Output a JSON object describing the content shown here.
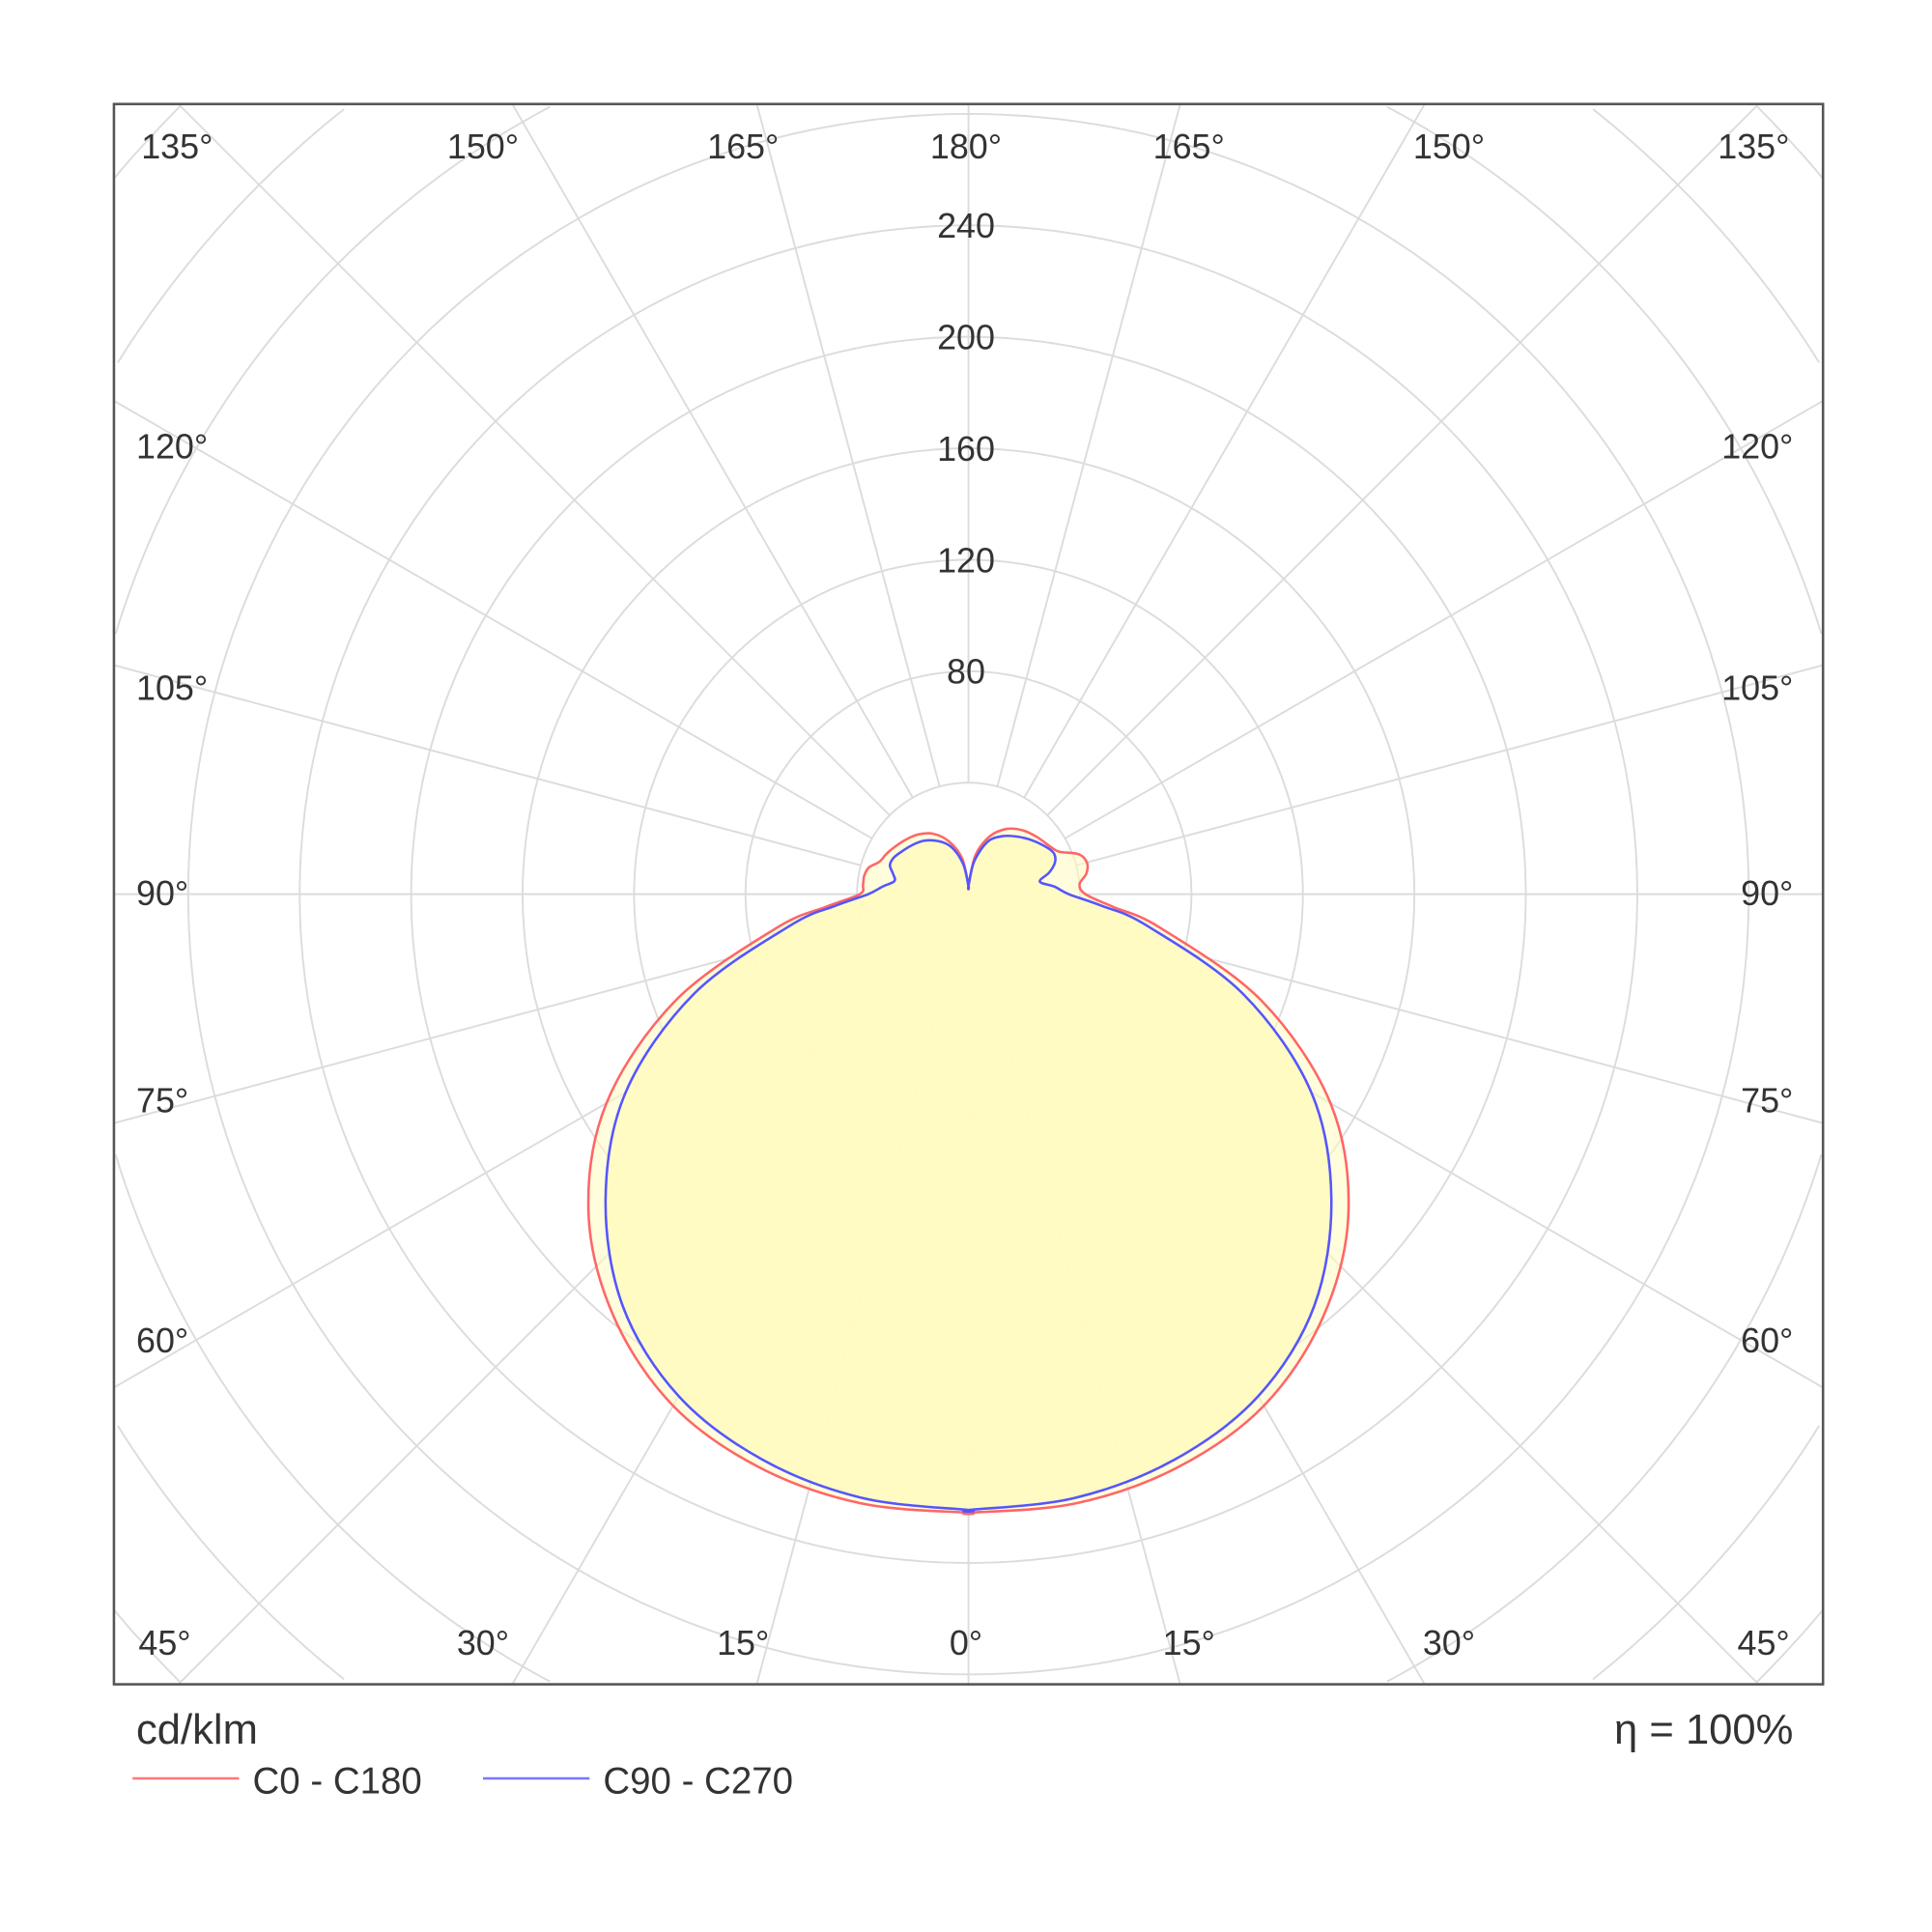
{
  "chart_data": {
    "type": "polar",
    "unit_label": "cd/klm",
    "efficiency_label": "η = 100%",
    "radial_ticks": [
      80,
      120,
      160,
      200,
      240
    ],
    "radial_grid_step": 40,
    "radial_max_visible": 320,
    "angle_grid_step_deg": 15,
    "angle_labels": {
      "top": [
        "135°",
        "150°",
        "165°",
        "180°",
        "165°",
        "150°",
        "135°"
      ],
      "left": [
        "120°",
        "105°",
        "90°",
        "75°",
        "60°"
      ],
      "right": [
        "120°",
        "105°",
        "90°",
        "75°",
        "60°"
      ],
      "bottom": [
        "45°",
        "30°",
        "15°",
        "0°",
        "15°",
        "30°",
        "45°"
      ]
    },
    "fill_color": "#fffbc0",
    "legend_placement": "bottom-left",
    "series": [
      {
        "name": "C0 - C180",
        "color": "#ff6666",
        "angles": [
          0,
          10,
          20,
          30,
          40,
          50,
          60,
          70,
          80,
          85,
          90,
          95,
          100,
          105,
          110,
          115,
          120,
          130,
          140,
          150,
          160,
          170,
          180
        ],
        "right_C0": [
          222,
          222,
          219,
          212,
          198,
          178,
          150,
          112,
          70,
          52,
          42,
          40,
          43,
          44,
          42,
          36,
          34,
          32,
          30,
          27,
          22,
          14,
          3
        ],
        "left_C180": [
          222,
          222,
          219,
          212,
          198,
          178,
          150,
          112,
          70,
          51,
          39,
          38,
          38,
          37,
          34,
          33,
          32,
          30,
          28,
          25,
          20,
          13,
          3
        ]
      },
      {
        "name": "C90 - C270",
        "color": "#5555ff",
        "angles": [
          0,
          10,
          20,
          30,
          40,
          50,
          60,
          70,
          80,
          85,
          90,
          95,
          100,
          105,
          110,
          115,
          120,
          130,
          140,
          150,
          160,
          170,
          180
        ],
        "right_C90": [
          221,
          220,
          216,
          208,
          193,
          170,
          142,
          105,
          65,
          48,
          36,
          31,
          26,
          30,
          33,
          34,
          33,
          30,
          27,
          24,
          20,
          12,
          3
        ],
        "left_C270": [
          221,
          220,
          216,
          208,
          193,
          170,
          142,
          105,
          65,
          48,
          36,
          31,
          27,
          28,
          30,
          30,
          29,
          27,
          25,
          22,
          18,
          11,
          3
        ]
      }
    ]
  }
}
